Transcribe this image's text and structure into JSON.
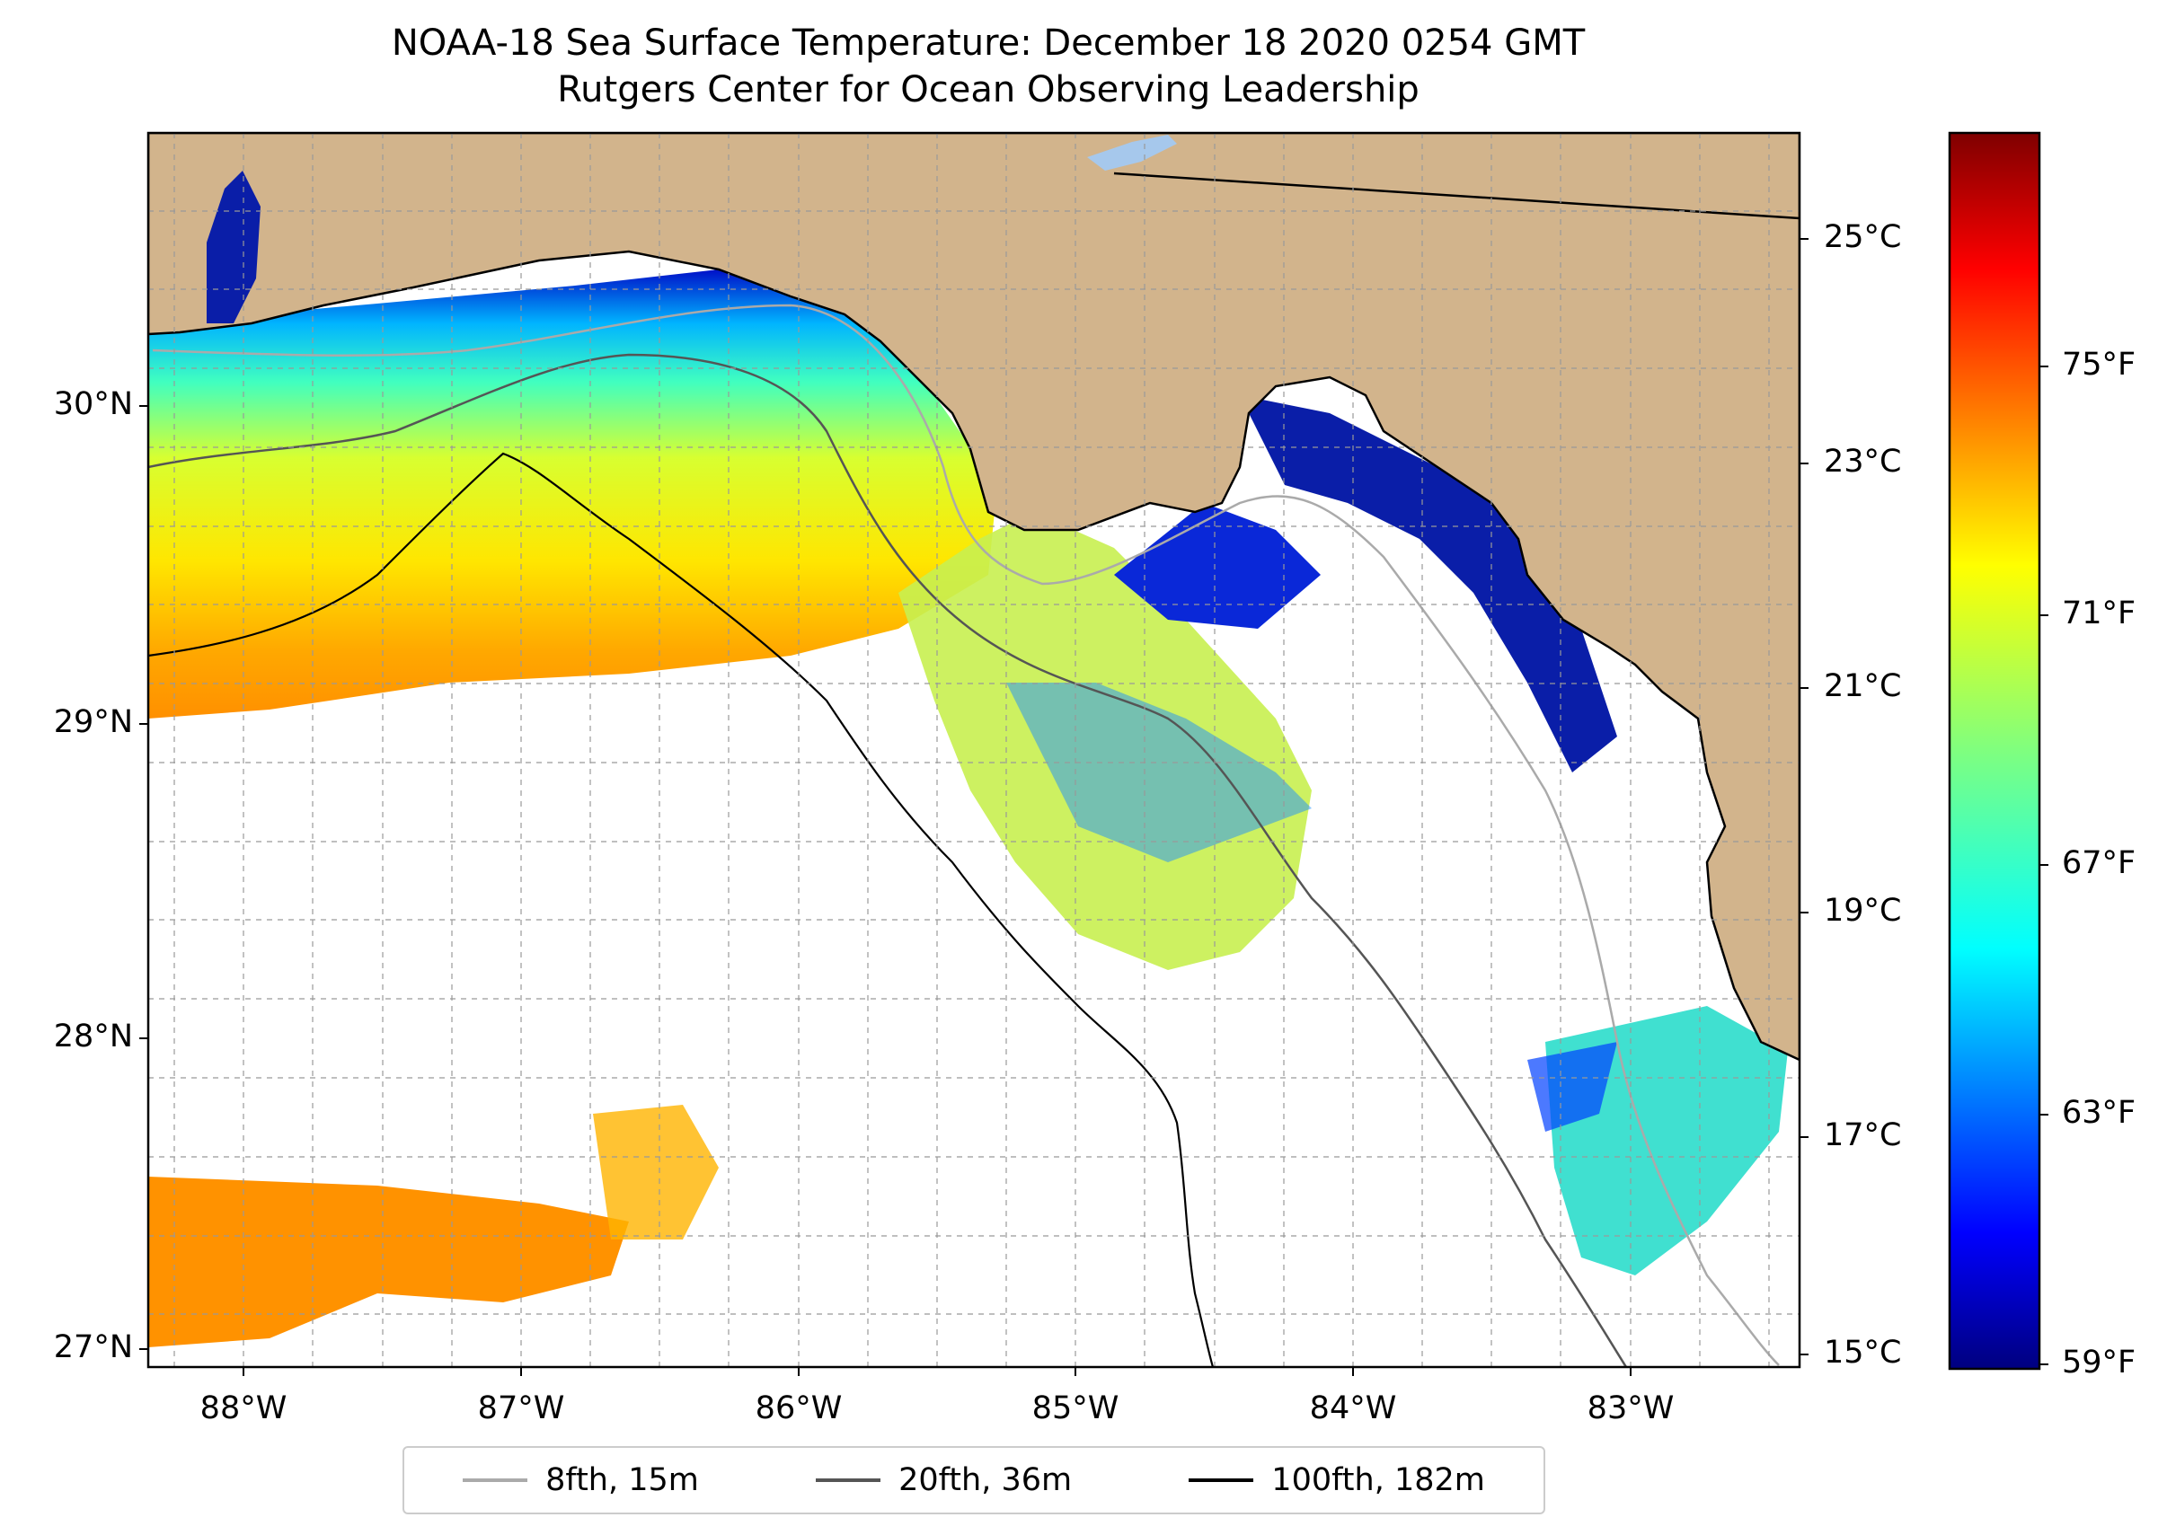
{
  "title_line1": "NOAA-18 Sea Surface Temperature: December 18 2020 0254 GMT",
  "title_line2": "Rutgers Center for Ocean Observing Leadership",
  "lat_labels": [
    "30°N",
    "29°N",
    "28°N",
    "27°N"
  ],
  "lon_labels": [
    "88°W",
    "87°W",
    "86°W",
    "85°W",
    "84°W",
    "83°W"
  ],
  "celsius_labels": [
    "25°C",
    "23°C",
    "21°C",
    "19°C",
    "17°C",
    "15°C"
  ],
  "fahrenheit_labels": [
    "75°F",
    "71°F",
    "67°F",
    "63°F",
    "59°F"
  ],
  "legend": [
    {
      "label": "8fth, 15m",
      "color": "#aaaaaa"
    },
    {
      "label": "20fth, 36m",
      "color": "#555555"
    },
    {
      "label": "100fth, 182m",
      "color": "#000000"
    }
  ],
  "colors": {
    "land": "#d2b48c",
    "lake": "#a6c8ec"
  },
  "colorbar_range_c": [
    15,
    26
  ]
}
